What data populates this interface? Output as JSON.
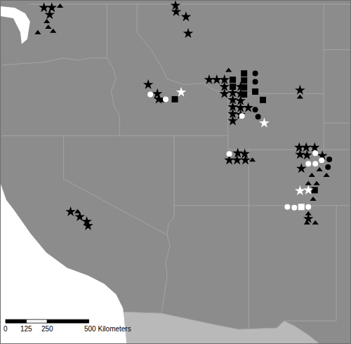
{
  "chart_data": {
    "type": "map",
    "tick_labels": false,
    "grid": false,
    "xlim": [
      0,
      2100
    ],
    "ylim": [
      0,
      2058
    ],
    "series": [
      {
        "marker": "star",
        "color": "#000000",
        "x": [
          260,
          307,
          294,
          1050,
          1054,
          1113,
          1126,
          886,
          941,
          949,
          1252,
          1298,
          1344,
          1344,
          1344,
          1394,
          1394,
          1394,
          1394,
          1394,
          1441,
          1441,
          1441,
          1441,
          1441,
          1487,
          1798,
          1424,
          1466,
          1373,
          1420,
          1470,
          1793,
          1835,
          1886,
          1798,
          1840,
          1932,
          1806,
          1848,
          420,
          475,
          517,
          525
        ],
        "y": [
          2016,
          2016,
          1974,
          2029,
          1991,
          1961,
          1861,
          1554,
          1499,
          1466,
          1583,
          1583,
          1583,
          1541,
          1499,
          1504,
          1462,
          1420,
          1378,
          1336,
          1541,
          1499,
          1457,
          1415,
          1373,
          1415,
          1520,
          1142,
          1138,
          1100,
          1100,
          1100,
          1176,
          1176,
          1176,
          1134,
          1130,
          1126,
          1050,
          748,
          790,
          760,
          731,
          706
        ]
      },
      {
        "marker": "triangle",
        "color": "#000000",
        "x": [
          357,
          277,
          286,
          223,
          315,
          970,
          1369,
          1798,
          1512,
          1869,
          1915,
          1957,
          1848,
          1898,
          1877,
          1848,
          1840,
          1890,
          462
        ],
        "y": [
          2024,
          1932,
          1898,
          1865,
          1873,
          1457,
          1638,
          1478,
          1100,
          1008,
          1042,
          1008,
          958,
          958,
          865,
          777,
          722,
          722,
          790
        ]
      },
      {
        "marker": "square",
        "color": "#000000",
        "x": [
          1394,
          1394,
          1462,
          1462,
          1462,
          1462,
          1529,
          1575,
          1046,
          1886
        ],
        "y": [
          1583,
          1541,
          1621,
          1579,
          1537,
          1495,
          1512,
          1462,
          1466,
          920
        ]
      },
      {
        "marker": "circle",
        "color": "#000000",
        "x": [
          1529,
          1529,
          1529,
          1546,
          1974,
          1966
        ],
        "y": [
          1621,
          1571,
          1403,
          1361,
          1105,
          1058
        ]
      },
      {
        "marker": "star",
        "color": "#ffffff",
        "x": [
          1084,
          1583,
          1798,
          1848
        ],
        "y": [
          1508,
          1323,
          916,
          920
        ]
      },
      {
        "marker": "circle",
        "color": "#ffffff",
        "x": [
          899,
          991,
          1449,
          1373,
          1890,
          1848,
          1890,
          1928,
          1722,
          1764,
          1848
        ],
        "y": [
          1495,
          1466,
          1365,
          1138,
          1142,
          1079,
          1079,
          1100,
          819,
          815,
          819
        ]
      },
      {
        "marker": "square",
        "color": "#ffffff",
        "x": [
          1806
        ],
        "y": [
          819
        ]
      }
    ],
    "scale_bar": {
      "ticks": [
        0,
        125,
        250,
        {
          "value": 500,
          "label": "500 Kilometers"
        }
      ]
    }
  }
}
